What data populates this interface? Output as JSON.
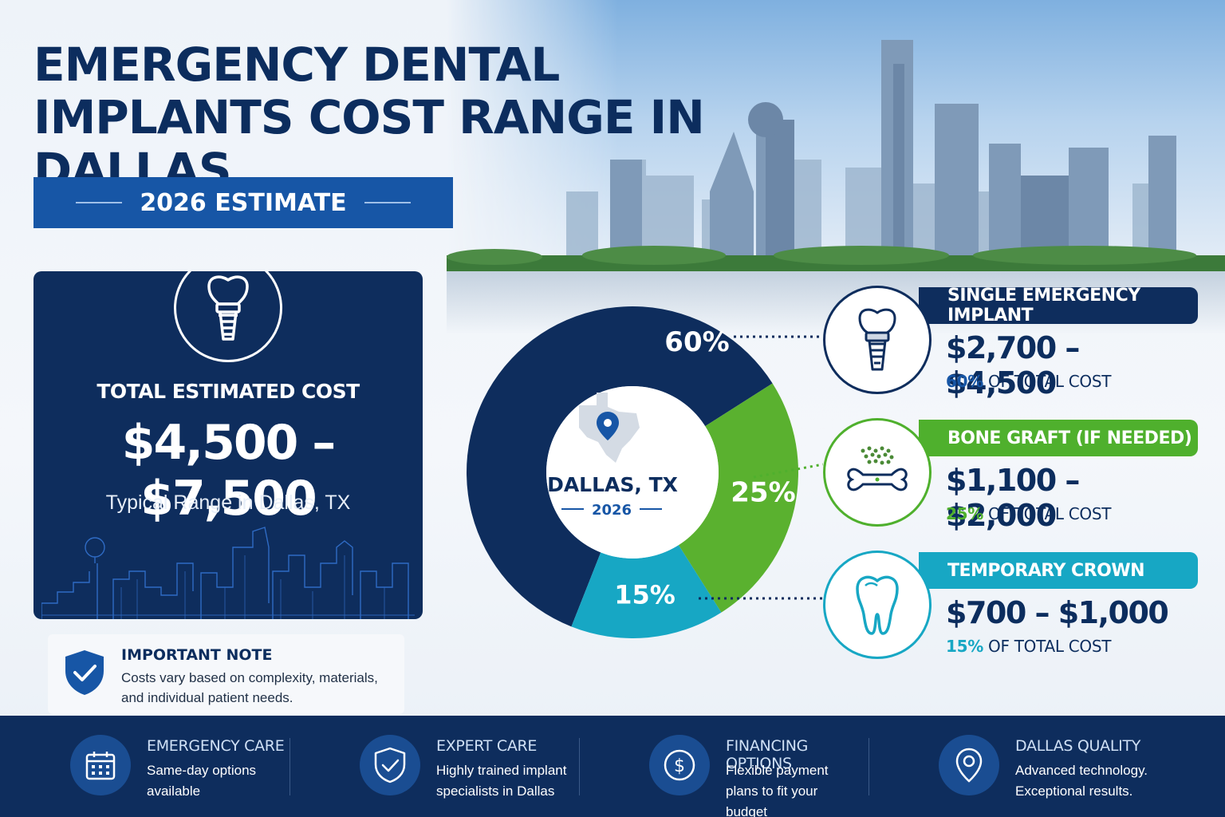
{
  "header": {
    "title": "EMERGENCY DENTAL IMPLANTS COST RANGE IN DALLAS",
    "badge": "2026 ESTIMATE"
  },
  "total": {
    "label": "TOTAL ESTIMATED COST",
    "range": "$4,500 – $7,500",
    "subtitle": "Typical Range in Dallas, TX",
    "icon": "tooth-implant-icon"
  },
  "note": {
    "title": "IMPORTANT NOTE",
    "body": "Costs vary based on complexity, materials, and individual patient needs.",
    "icon": "shield-check-icon"
  },
  "chart_center": {
    "location": "DALLAS, TX",
    "year": "2026",
    "icon": "texas-map-pin-icon"
  },
  "chart_data": {
    "type": "pie",
    "categories": [
      "SINGLE EMERGENCY IMPLANT",
      "BONE GRAFT (IF NEEDED)",
      "TEMPORARY CROWN"
    ],
    "values": [
      60,
      25,
      15
    ],
    "labels": [
      "60%",
      "25%",
      "15%"
    ],
    "colors": [
      "#0e2d5d",
      "#5ab12f",
      "#17a7c4"
    ],
    "donut": true
  },
  "categories": [
    {
      "title": "SINGLE EMERGENCY IMPLANT",
      "price": "$2,700 – $4,500",
      "pct": "60%",
      "share_text": "OF TOTAL COST",
      "color": "#0e2d5d",
      "pct_color": "#1756a6",
      "icon": "implant-icon"
    },
    {
      "title": "BONE GRAFT (IF NEEDED)",
      "price": "$1,100 – $2,000",
      "pct": "25%",
      "share_text": "OF TOTAL COST",
      "color": "#4fb02d",
      "pct_color": "#4fb02d",
      "icon": "bone-graft-icon"
    },
    {
      "title": "TEMPORARY CROWN",
      "price": "$700 – $1,000",
      "pct": "15%",
      "share_text": "OF TOTAL COST",
      "color": "#17a7c4",
      "pct_color": "#17a7c4",
      "icon": "tooth-icon"
    }
  ],
  "footer": [
    {
      "title": "EMERGENCY CARE",
      "desc": "Same-day options available",
      "icon": "calendar-icon"
    },
    {
      "title": "EXPERT CARE",
      "desc": "Highly trained implant specialists in Dallas",
      "icon": "shield-check-icon"
    },
    {
      "title": "FINANCING OPTIONS",
      "desc": "Flexible payment plans to fit your budget",
      "icon": "dollar-coin-icon"
    },
    {
      "title": "DALLAS QUALITY",
      "desc": "Advanced technology. Exceptional results.",
      "icon": "location-pin-icon"
    }
  ]
}
